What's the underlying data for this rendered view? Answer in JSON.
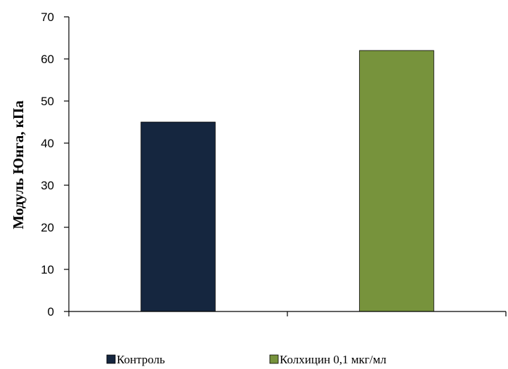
{
  "chart_data": {
    "type": "bar",
    "title": "",
    "xlabel": "",
    "ylabel": "Модуль Юнга, кПа",
    "ylim": [
      0,
      70
    ],
    "yticks": [
      0,
      10,
      20,
      30,
      40,
      50,
      60,
      70
    ],
    "grid": false,
    "legend_position": "bottom",
    "series": [
      {
        "name": "Контроль",
        "value": 45,
        "color": "#15263f"
      },
      {
        "name": "Колхицин 0,1 мкг/мл",
        "value": 62,
        "color": "#77933c"
      }
    ]
  }
}
